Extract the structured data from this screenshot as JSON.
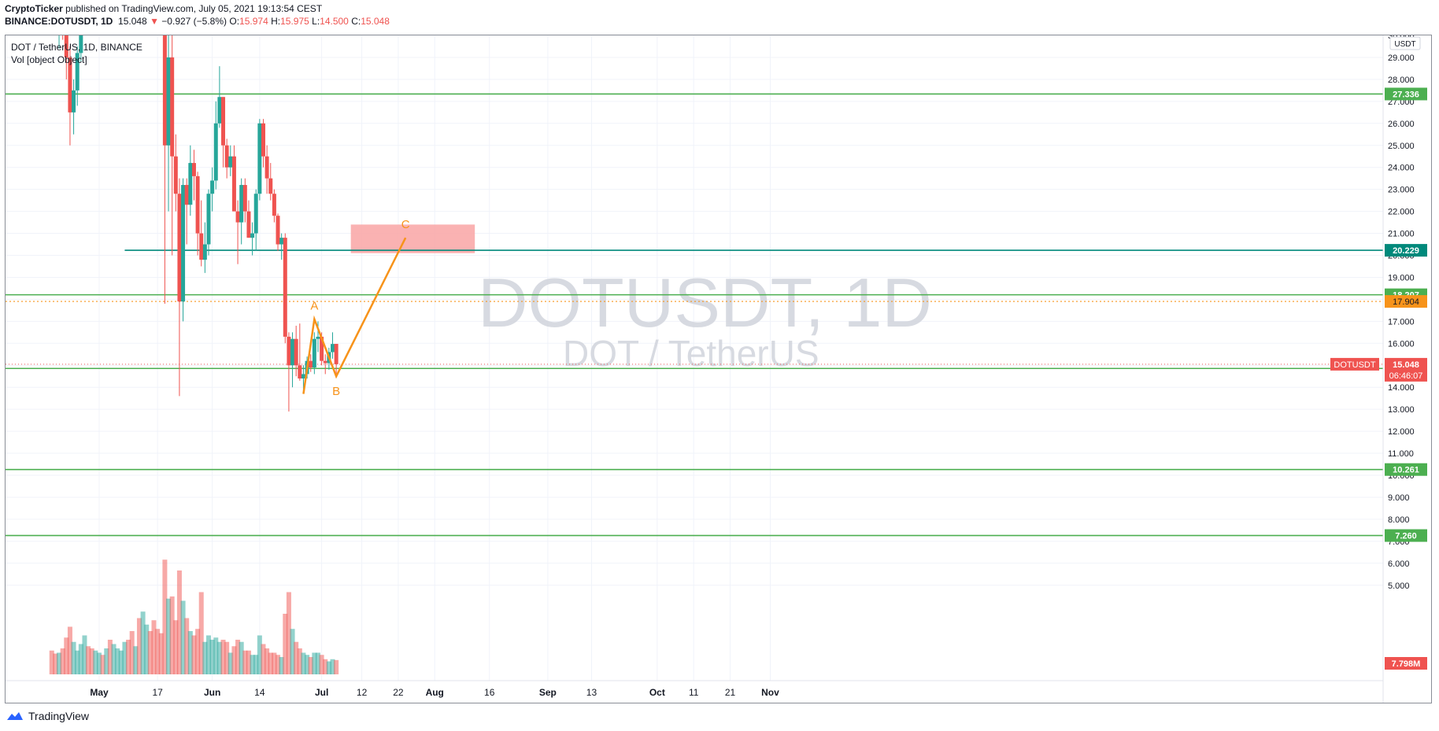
{
  "publish": {
    "author": "CryptoTicker",
    "text": "published on TradingView.com, July 05, 2021 19:13:54 CEST"
  },
  "ohlc": {
    "symbol": "BINANCE:DOTUSDT, 1D",
    "last": "15.048",
    "change": "−0.927 (−5.8%)",
    "o_label": "O:",
    "o": "15.974",
    "h_label": "H:",
    "h": "15.975",
    "l_label": "L:",
    "l": "14.500",
    "c_label": "C:",
    "c": "15.048"
  },
  "legend": {
    "title": "DOT / TetherUS, 1D, BINANCE",
    "vol": "Vol [object Object]"
  },
  "watermark": {
    "big": "DOTUSDT, 1D",
    "small": "DOT / TetherUS"
  },
  "footer": {
    "brand": "TradingView"
  },
  "colors": {
    "up": "#26a69a",
    "down": "#ef5350",
    "level": "#4caf50",
    "pivot": "#f7931a",
    "zone": "#f9a5a5",
    "teal": "#00897b"
  },
  "chart_data": {
    "type": "candlestick",
    "currency_badge": "USDT",
    "y_ticks": [
      "5.000",
      "6.000",
      "7.000",
      "8.000",
      "9.000",
      "10.000",
      "11.000",
      "12.000",
      "13.000",
      "14.000",
      "15.000",
      "16.000",
      "17.000",
      "18.000",
      "19.000",
      "20.000",
      "21.000",
      "22.000",
      "23.000",
      "24.000",
      "25.000",
      "26.000",
      "27.000",
      "28.000",
      "29.000",
      "30.000"
    ],
    "x_ticks": [
      {
        "label": "May",
        "date": "2021-05-01",
        "bold": true
      },
      {
        "label": "17",
        "date": "2021-05-17"
      },
      {
        "label": "Jun",
        "date": "2021-06-01",
        "bold": true
      },
      {
        "label": "14",
        "date": "2021-06-14"
      },
      {
        "label": "Jul",
        "date": "2021-07-01",
        "bold": true
      },
      {
        "label": "12",
        "date": "2021-07-12"
      },
      {
        "label": "22",
        "date": "2021-07-22"
      },
      {
        "label": "Aug",
        "date": "2021-08-01",
        "bold": true
      },
      {
        "label": "16",
        "date": "2021-08-16"
      },
      {
        "label": "Sep",
        "date": "2021-09-01",
        "bold": true
      },
      {
        "label": "13",
        "date": "2021-09-13"
      },
      {
        "label": "Oct",
        "date": "2021-10-01",
        "bold": true
      },
      {
        "label": "11",
        "date": "2021-10-11"
      },
      {
        "label": "21",
        "date": "2021-10-21"
      },
      {
        "label": "Nov",
        "date": "2021-11-01",
        "bold": true
      }
    ],
    "levels": [
      {
        "price": 27.336,
        "label": "27.336",
        "color": "#4caf50"
      },
      {
        "price": 20.229,
        "label": "20.229",
        "color": "#00897b",
        "start": "2021-05-08"
      },
      {
        "price": 18.207,
        "label": "18.207",
        "color": "#4caf50"
      },
      {
        "price": 14.857,
        "label": "14.857",
        "color": "#4caf50"
      },
      {
        "price": 10.261,
        "label": "10.261",
        "color": "#4caf50"
      },
      {
        "price": 7.26,
        "label": "7.260",
        "color": "#4caf50"
      }
    ],
    "dotted_level": {
      "price": 17.904,
      "label": "17.904",
      "color": "#f7931a"
    },
    "last_price": {
      "price": 15.048,
      "label": "15.048",
      "symbol": "DOTUSDT",
      "countdown": "06:46:07",
      "color": "#ef5350"
    },
    "volume_label": "7.798M",
    "pattern": {
      "points": [
        {
          "name": "",
          "date": "2021-06-26",
          "price": 13.7
        },
        {
          "name": "A",
          "date": "2021-06-29",
          "price": 17.1
        },
        {
          "name": "B",
          "date": "2021-07-05",
          "price": 14.5
        },
        {
          "name": "C",
          "date": "2021-07-24",
          "price": 20.8
        }
      ]
    },
    "zone": {
      "from": "2021-07-09",
      "to": "2021-08-12",
      "low": 20.1,
      "high": 21.4
    },
    "candles": [
      {
        "d": "2021-04-18",
        "o": 33.5,
        "h": 34.0,
        "l": 31.0,
        "c": 31.5,
        "v": 0.55
      },
      {
        "d": "2021-04-19",
        "o": 31.5,
        "h": 32.5,
        "l": 30.0,
        "c": 30.2,
        "v": 0.48
      },
      {
        "d": "2021-04-20",
        "o": 30.2,
        "h": 31.5,
        "l": 29.4,
        "c": 30.8,
        "v": 0.5
      },
      {
        "d": "2021-04-21",
        "o": 30.8,
        "h": 32.0,
        "l": 29.8,
        "c": 30.4,
        "v": 0.6
      },
      {
        "d": "2021-04-22",
        "o": 30.4,
        "h": 31.2,
        "l": 28.0,
        "c": 29.0,
        "v": 0.85
      },
      {
        "d": "2021-04-23",
        "o": 29.0,
        "h": 29.5,
        "l": 25.0,
        "c": 26.5,
        "v": 1.1
      },
      {
        "d": "2021-04-24",
        "o": 26.5,
        "h": 28.0,
        "l": 25.5,
        "c": 27.5,
        "v": 0.75
      },
      {
        "d": "2021-04-25",
        "o": 27.5,
        "h": 29.5,
        "l": 26.8,
        "c": 29.2,
        "v": 0.55
      },
      {
        "d": "2021-04-26",
        "o": 29.2,
        "h": 33.0,
        "l": 28.8,
        "c": 32.5,
        "v": 0.7
      },
      {
        "d": "2021-04-27",
        "o": 32.5,
        "h": 35.0,
        "l": 32.0,
        "c": 33.5,
        "v": 0.9
      },
      {
        "d": "2021-04-28",
        "o": 33.5,
        "h": 34.0,
        "l": 31.5,
        "c": 32.3,
        "v": 0.65
      },
      {
        "d": "2021-04-29",
        "o": 32.3,
        "h": 33.5,
        "l": 31.0,
        "c": 32.0,
        "v": 0.6
      },
      {
        "d": "2021-04-30",
        "o": 32.0,
        "h": 34.0,
        "l": 31.8,
        "c": 33.8,
        "v": 0.55
      },
      {
        "d": "2021-05-01",
        "o": 33.8,
        "h": 36.0,
        "l": 33.5,
        "c": 35.5,
        "v": 0.5
      },
      {
        "d": "2021-05-02",
        "o": 35.5,
        "h": 36.5,
        "l": 34.0,
        "c": 34.8,
        "v": 0.45
      },
      {
        "d": "2021-05-03",
        "o": 34.8,
        "h": 38.0,
        "l": 34.5,
        "c": 37.5,
        "v": 0.6
      },
      {
        "d": "2021-05-04",
        "o": 37.5,
        "h": 38.0,
        "l": 34.0,
        "c": 35.2,
        "v": 0.8
      },
      {
        "d": "2021-05-05",
        "o": 35.2,
        "h": 38.5,
        "l": 35.0,
        "c": 38.0,
        "v": 0.7
      },
      {
        "d": "2021-05-06",
        "o": 38.0,
        "h": 39.5,
        "l": 37.0,
        "c": 38.8,
        "v": 0.6
      },
      {
        "d": "2021-05-07",
        "o": 38.8,
        "h": 40.0,
        "l": 37.5,
        "c": 39.0,
        "v": 0.55
      },
      {
        "d": "2021-05-08",
        "o": 39.0,
        "h": 42.0,
        "l": 38.5,
        "c": 41.5,
        "v": 0.75
      },
      {
        "d": "2021-05-09",
        "o": 41.5,
        "h": 42.5,
        "l": 39.0,
        "c": 40.2,
        "v": 0.8
      },
      {
        "d": "2021-05-10",
        "o": 40.2,
        "h": 42.0,
        "l": 37.0,
        "c": 38.0,
        "v": 1.0
      },
      {
        "d": "2021-05-11",
        "o": 38.0,
        "h": 40.5,
        "l": 37.5,
        "c": 40.0,
        "v": 0.65
      },
      {
        "d": "2021-05-12",
        "o": 40.0,
        "h": 41.0,
        "l": 33.5,
        "c": 34.5,
        "v": 1.3
      },
      {
        "d": "2021-05-13",
        "o": 34.5,
        "h": 37.5,
        "l": 32.0,
        "c": 37.0,
        "v": 1.45
      },
      {
        "d": "2021-05-14",
        "o": 37.0,
        "h": 41.0,
        "l": 36.5,
        "c": 40.5,
        "v": 1.15
      },
      {
        "d": "2021-05-15",
        "o": 40.5,
        "h": 41.0,
        "l": 36.0,
        "c": 36.8,
        "v": 1.0
      },
      {
        "d": "2021-05-16",
        "o": 36.8,
        "h": 38.0,
        "l": 33.0,
        "c": 34.5,
        "v": 1.25
      },
      {
        "d": "2021-05-17",
        "o": 34.5,
        "h": 35.5,
        "l": 31.0,
        "c": 32.0,
        "v": 1.05
      },
      {
        "d": "2021-05-18",
        "o": 32.0,
        "h": 33.5,
        "l": 30.5,
        "c": 31.3,
        "v": 0.95
      },
      {
        "d": "2021-05-19",
        "o": 31.3,
        "h": 32.0,
        "l": 17.8,
        "c": 25.0,
        "v": 2.65
      },
      {
        "d": "2021-05-20",
        "o": 25.0,
        "h": 30.2,
        "l": 22.0,
        "c": 29.0,
        "v": 1.75
      },
      {
        "d": "2021-05-21",
        "o": 29.0,
        "h": 30.0,
        "l": 20.0,
        "c": 24.5,
        "v": 1.8
      },
      {
        "d": "2021-05-22",
        "o": 24.5,
        "h": 25.5,
        "l": 22.0,
        "c": 22.8,
        "v": 1.25
      },
      {
        "d": "2021-05-23",
        "o": 22.8,
        "h": 23.5,
        "l": 13.6,
        "c": 17.9,
        "v": 2.4
      },
      {
        "d": "2021-05-24",
        "o": 17.9,
        "h": 23.5,
        "l": 17.0,
        "c": 23.2,
        "v": 1.7
      },
      {
        "d": "2021-05-25",
        "o": 23.2,
        "h": 23.5,
        "l": 20.5,
        "c": 22.3,
        "v": 1.3
      },
      {
        "d": "2021-05-26",
        "o": 22.3,
        "h": 25.0,
        "l": 21.8,
        "c": 24.2,
        "v": 1.0
      },
      {
        "d": "2021-05-27",
        "o": 24.2,
        "h": 24.8,
        "l": 22.5,
        "c": 23.6,
        "v": 0.9
      },
      {
        "d": "2021-05-28",
        "o": 23.6,
        "h": 23.8,
        "l": 20.0,
        "c": 21.0,
        "v": 1.05
      },
      {
        "d": "2021-05-29",
        "o": 21.0,
        "h": 22.5,
        "l": 19.5,
        "c": 19.8,
        "v": 1.9
      },
      {
        "d": "2021-05-30",
        "o": 19.8,
        "h": 21.5,
        "l": 19.2,
        "c": 20.5,
        "v": 0.75
      },
      {
        "d": "2021-05-31",
        "o": 20.5,
        "h": 23.0,
        "l": 20.0,
        "c": 22.8,
        "v": 0.9
      },
      {
        "d": "2021-06-01",
        "o": 22.8,
        "h": 24.0,
        "l": 22.0,
        "c": 23.4,
        "v": 0.8
      },
      {
        "d": "2021-06-02",
        "o": 23.4,
        "h": 27.0,
        "l": 23.0,
        "c": 26.0,
        "v": 0.85
      },
      {
        "d": "2021-06-03",
        "o": 26.0,
        "h": 28.6,
        "l": 25.8,
        "c": 27.2,
        "v": 0.75
      },
      {
        "d": "2021-06-04",
        "o": 27.2,
        "h": 27.2,
        "l": 24.0,
        "c": 25.0,
        "v": 0.8
      },
      {
        "d": "2021-06-05",
        "o": 25.0,
        "h": 25.3,
        "l": 23.5,
        "c": 24.0,
        "v": 0.75
      },
      {
        "d": "2021-06-06",
        "o": 24.0,
        "h": 25.0,
        "l": 23.6,
        "c": 24.5,
        "v": 0.5
      },
      {
        "d": "2021-06-07",
        "o": 24.5,
        "h": 25.0,
        "l": 22.0,
        "c": 22.0,
        "v": 0.65
      },
      {
        "d": "2021-06-08",
        "o": 22.0,
        "h": 22.5,
        "l": 19.6,
        "c": 21.5,
        "v": 0.8
      },
      {
        "d": "2021-06-09",
        "o": 21.5,
        "h": 23.5,
        "l": 20.5,
        "c": 23.2,
        "v": 0.75
      },
      {
        "d": "2021-06-10",
        "o": 23.2,
        "h": 23.5,
        "l": 21.5,
        "c": 22.0,
        "v": 0.55
      },
      {
        "d": "2021-06-11",
        "o": 22.0,
        "h": 22.5,
        "l": 20.8,
        "c": 20.8,
        "v": 0.55
      },
      {
        "d": "2021-06-12",
        "o": 20.8,
        "h": 21.5,
        "l": 20.0,
        "c": 21.0,
        "v": 0.45
      },
      {
        "d": "2021-06-13",
        "o": 21.0,
        "h": 23.0,
        "l": 20.2,
        "c": 22.8,
        "v": 0.45
      },
      {
        "d": "2021-06-14",
        "o": 22.8,
        "h": 26.2,
        "l": 22.5,
        "c": 26.0,
        "v": 0.9
      },
      {
        "d": "2021-06-15",
        "o": 26.0,
        "h": 26.2,
        "l": 24.0,
        "c": 24.5,
        "v": 0.7
      },
      {
        "d": "2021-06-16",
        "o": 24.5,
        "h": 25.0,
        "l": 22.8,
        "c": 23.5,
        "v": 0.6
      },
      {
        "d": "2021-06-17",
        "o": 23.5,
        "h": 24.2,
        "l": 22.5,
        "c": 22.8,
        "v": 0.5
      },
      {
        "d": "2021-06-18",
        "o": 22.8,
        "h": 23.0,
        "l": 21.5,
        "c": 21.8,
        "v": 0.5
      },
      {
        "d": "2021-06-19",
        "o": 21.8,
        "h": 21.9,
        "l": 20.2,
        "c": 20.5,
        "v": 0.45
      },
      {
        "d": "2021-06-20",
        "o": 20.5,
        "h": 21.0,
        "l": 19.8,
        "c": 20.8,
        "v": 0.4
      },
      {
        "d": "2021-06-21",
        "o": 20.8,
        "h": 21.0,
        "l": 16.0,
        "c": 16.3,
        "v": 1.4
      },
      {
        "d": "2021-06-22",
        "o": 16.3,
        "h": 16.5,
        "l": 12.9,
        "c": 15.0,
        "v": 1.9
      },
      {
        "d": "2021-06-23",
        "o": 15.0,
        "h": 16.5,
        "l": 14.0,
        "c": 16.2,
        "v": 1.05
      },
      {
        "d": "2021-06-24",
        "o": 16.2,
        "h": 16.8,
        "l": 14.5,
        "c": 15.0,
        "v": 0.75
      },
      {
        "d": "2021-06-25",
        "o": 15.0,
        "h": 16.9,
        "l": 14.3,
        "c": 14.4,
        "v": 0.6
      },
      {
        "d": "2021-06-26",
        "o": 14.4,
        "h": 15.0,
        "l": 13.7,
        "c": 14.6,
        "v": 0.5
      },
      {
        "d": "2021-06-27",
        "o": 14.6,
        "h": 15.4,
        "l": 14.4,
        "c": 15.2,
        "v": 0.45
      },
      {
        "d": "2021-06-28",
        "o": 15.2,
        "h": 15.5,
        "l": 14.7,
        "c": 14.9,
        "v": 0.4
      },
      {
        "d": "2021-06-29",
        "o": 14.9,
        "h": 16.5,
        "l": 14.6,
        "c": 16.2,
        "v": 0.5
      },
      {
        "d": "2021-06-30",
        "o": 16.2,
        "h": 17.0,
        "l": 15.6,
        "c": 16.3,
        "v": 0.5
      },
      {
        "d": "2021-07-01",
        "o": 16.3,
        "h": 16.5,
        "l": 15.0,
        "c": 15.2,
        "v": 0.45
      },
      {
        "d": "2021-07-02",
        "o": 15.2,
        "h": 15.5,
        "l": 14.6,
        "c": 15.1,
        "v": 0.35
      },
      {
        "d": "2021-07-03",
        "o": 15.1,
        "h": 15.8,
        "l": 14.8,
        "c": 15.6,
        "v": 0.3
      },
      {
        "d": "2021-07-04",
        "o": 15.6,
        "h": 16.5,
        "l": 15.3,
        "c": 15.97,
        "v": 0.35
      },
      {
        "d": "2021-07-05",
        "o": 15.974,
        "h": 15.975,
        "l": 14.5,
        "c": 15.048,
        "v": 0.33
      }
    ]
  }
}
